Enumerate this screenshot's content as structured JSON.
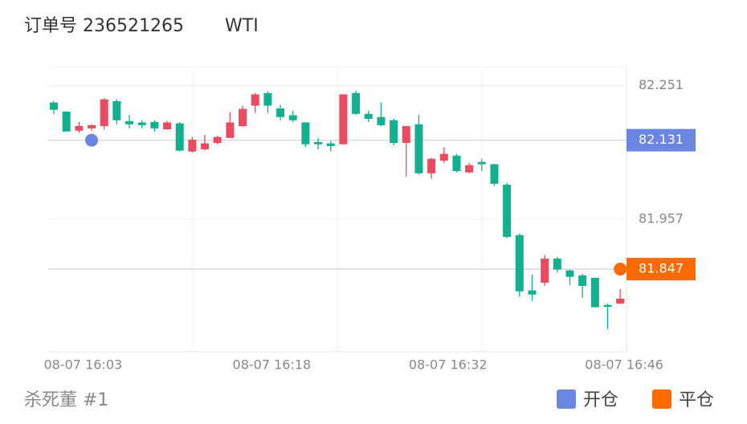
{
  "header": {
    "order_label": "订单号 236521265",
    "symbol": "WTI"
  },
  "chart_data": {
    "type": "candlestick",
    "categories": [
      null,
      null,
      "08-07 16:03",
      null,
      null,
      null,
      null,
      null,
      null,
      null,
      null,
      null,
      null,
      null,
      null,
      null,
      null,
      "08-07 16:18",
      null,
      null,
      null,
      null,
      null,
      null,
      null,
      null,
      null,
      null,
      null,
      null,
      null,
      "08-07 16:32",
      null,
      null,
      null,
      null,
      null,
      null,
      null,
      null,
      null,
      null,
      null,
      null,
      null,
      "08-07 16:46"
    ],
    "open": [
      82.214,
      82.194,
      82.152,
      82.157,
      82.162,
      82.217,
      82.173,
      82.17,
      82.171,
      82.155,
      82.168,
      82.106,
      82.111,
      82.125,
      82.136,
      82.162,
      82.207,
      82.235,
      82.201,
      82.186,
      82.17,
      82.127,
      82.124,
      82.122,
      82.235,
      82.189,
      82.182,
      82.175,
      82.125,
      82.166,
      82.058,
      82.086,
      82.097,
      82.06,
      82.083,
      82.078,
      82.033,
      81.922,
      81.8,
      81.817,
      81.87,
      81.844,
      81.833,
      81.828,
      81.768,
      81.771
    ],
    "high": [
      82.217,
      82.194,
      82.171,
      82.166,
      82.224,
      82.221,
      82.187,
      82.175,
      82.175,
      82.173,
      82.171,
      82.138,
      82.143,
      82.141,
      82.193,
      82.207,
      82.235,
      82.239,
      82.209,
      82.196,
      82.171,
      82.136,
      82.129,
      82.232,
      82.24,
      82.196,
      82.214,
      82.178,
      82.162,
      82.187,
      82.092,
      82.115,
      82.101,
      82.081,
      82.09,
      82.079,
      82.037,
      81.925,
      81.835,
      81.878,
      81.874,
      81.846,
      81.837,
      81.828,
      81.771,
      81.803
    ],
    "low": [
      82.189,
      82.15,
      82.147,
      82.152,
      82.154,
      82.166,
      82.157,
      82.157,
      82.15,
      82.154,
      82.106,
      82.104,
      82.108,
      82.122,
      82.136,
      82.161,
      82.191,
      82.191,
      82.175,
      82.17,
      82.116,
      82.111,
      82.106,
      82.122,
      82.186,
      82.171,
      82.162,
      82.12,
      82.051,
      82.055,
      82.046,
      82.081,
      82.06,
      82.058,
      82.063,
      82.03,
      81.915,
      81.786,
      81.777,
      81.81,
      81.839,
      81.812,
      81.784,
      81.763,
      81.715,
      81.77
    ],
    "close": [
      82.198,
      82.15,
      82.162,
      82.164,
      82.221,
      82.175,
      82.166,
      82.164,
      82.157,
      82.17,
      82.108,
      82.132,
      82.124,
      82.138,
      82.17,
      82.2,
      82.232,
      82.207,
      82.182,
      82.175,
      82.122,
      82.122,
      82.118,
      82.232,
      82.189,
      82.178,
      82.164,
      82.125,
      82.162,
      82.058,
      82.09,
      82.101,
      82.063,
      82.076,
      82.078,
      82.035,
      81.918,
      81.798,
      81.791,
      81.87,
      81.846,
      81.83,
      81.81,
      81.763,
      81.764,
      81.782
    ],
    "up_color": "#eb4b5e",
    "down_color": "#12b08e",
    "ylim": [
      81.665,
      82.293
    ],
    "yticks": [
      82.251,
      81.957
    ],
    "grid": true,
    "markers": [
      {
        "name": "开仓",
        "color": "#6a86e2",
        "price": 82.131,
        "index": 3
      },
      {
        "name": "平仓",
        "color": "#ff6a00",
        "price": 81.847,
        "index": 45
      }
    ]
  },
  "footer": "杀死董 #1"
}
